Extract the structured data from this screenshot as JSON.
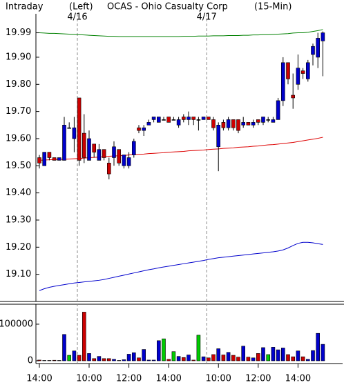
{
  "chart_data": {
    "type": "candlestick",
    "title": "OCAS - Ohio Casualty Corp",
    "header": [
      "Intraday",
      "(Left)",
      "(15-Min)"
    ],
    "date_labels": [
      "4/16",
      "4/17"
    ],
    "categories": [
      "14:00",
      null,
      null,
      null,
      null,
      null,
      null,
      null,
      null,
      null,
      "10:00",
      null,
      null,
      null,
      null,
      null,
      null,
      null,
      "12:00",
      null,
      null,
      null,
      null,
      null,
      null,
      null,
      "14:00",
      null,
      null,
      null,
      null,
      null,
      null,
      null,
      null,
      null,
      "10:00",
      null,
      null,
      null,
      null,
      null,
      null,
      null,
      "12:00",
      null,
      null,
      null,
      null,
      null,
      null,
      null,
      "14:00",
      null,
      null,
      null,
      null,
      null
    ],
    "open": [
      19.53,
      19.5,
      19.55,
      19.53,
      19.52,
      19.52,
      19.64,
      19.6,
      19.75,
      19.62,
      19.52,
      19.58,
      19.52,
      19.56,
      19.51,
      19.53,
      19.56,
      19.5,
      19.5,
      19.54,
      19.64,
      19.63,
      19.65,
      19.67,
      19.66,
      19.67,
      19.68,
      19.67,
      19.65,
      19.68,
      19.67,
      19.68,
      19.67,
      19.67,
      19.68,
      19.67,
      19.57,
      19.66,
      19.64,
      19.67,
      19.67,
      19.65,
      19.66,
      19.65,
      19.67,
      19.66,
      19.67,
      19.66,
      19.67,
      19.74,
      19.88,
      19.76,
      19.8,
      19.85,
      19.82,
      19.91,
      19.9,
      19.96
    ],
    "high": [
      19.54,
      19.55,
      19.55,
      19.53,
      19.53,
      19.68,
      19.66,
      19.68,
      19.75,
      19.69,
      19.63,
      19.58,
      19.58,
      19.56,
      19.53,
      19.59,
      19.56,
      19.54,
      19.55,
      19.6,
      19.65,
      19.65,
      19.67,
      19.68,
      19.68,
      19.68,
      19.68,
      19.68,
      19.68,
      19.69,
      19.7,
      19.68,
      19.68,
      19.68,
      19.68,
      19.68,
      19.66,
      19.67,
      19.68,
      19.67,
      19.67,
      19.68,
      19.66,
      19.67,
      19.67,
      19.68,
      19.68,
      19.68,
      19.75,
      19.9,
      19.88,
      19.84,
      19.91,
      19.86,
      19.89,
      19.95,
      19.99,
      19.995
    ],
    "low": [
      19.49,
      19.5,
      19.52,
      19.52,
      19.52,
      19.52,
      19.64,
      19.55,
      19.5,
      19.51,
      19.52,
      19.53,
      19.52,
      19.52,
      19.45,
      19.5,
      19.5,
      19.49,
      19.49,
      19.53,
      19.62,
      19.61,
      19.65,
      19.66,
      19.66,
      19.67,
      19.66,
      19.67,
      19.64,
      19.66,
      19.65,
      19.65,
      19.63,
      19.67,
      19.67,
      19.63,
      19.48,
      19.63,
      19.63,
      19.63,
      19.62,
      19.64,
      19.65,
      19.64,
      19.65,
      19.65,
      19.66,
      19.66,
      19.67,
      19.72,
      19.8,
      19.71,
      19.78,
      19.82,
      19.81,
      19.87,
      19.86,
      19.83
    ],
    "close": [
      19.51,
      19.55,
      19.53,
      19.52,
      19.53,
      19.65,
      19.64,
      19.64,
      19.52,
      19.53,
      19.6,
      19.55,
      19.56,
      19.53,
      19.47,
      19.57,
      19.51,
      19.54,
      19.53,
      19.59,
      19.63,
      19.64,
      19.66,
      19.68,
      19.68,
      19.67,
      19.66,
      19.67,
      19.67,
      19.67,
      19.68,
      19.67,
      19.67,
      19.68,
      19.67,
      19.64,
      19.65,
      19.64,
      19.67,
      19.64,
      19.63,
      19.66,
      19.65,
      19.66,
      19.66,
      19.68,
      19.67,
      19.67,
      19.74,
      19.88,
      19.82,
      19.75,
      19.86,
      19.84,
      19.88,
      19.94,
      19.97,
      19.99
    ],
    "series": [
      {
        "name": "upper",
        "color": "#008000",
        "values": [
          19.99,
          19.989,
          19.988,
          19.988,
          19.987,
          19.986,
          19.985,
          19.984,
          19.983,
          19.982,
          19.981,
          19.98,
          19.979,
          19.978,
          19.977,
          19.977,
          19.976,
          19.976,
          19.976,
          19.976,
          19.976,
          19.976,
          19.976,
          19.976,
          19.976,
          19.976,
          19.976,
          19.976,
          19.976,
          19.977,
          19.977,
          19.977,
          19.978,
          19.978,
          19.978,
          19.979,
          19.979,
          19.979,
          19.98,
          19.98,
          19.98,
          19.981,
          19.981,
          19.982,
          19.982,
          19.983,
          19.983,
          19.984,
          19.985,
          19.986,
          19.987,
          19.989,
          19.99,
          19.99,
          19.992,
          19.995,
          19.998,
          20.002
        ]
      },
      {
        "name": "middle",
        "color": "#dd0000",
        "values": [
          19.52,
          19.521,
          19.522,
          19.523,
          19.523,
          19.524,
          19.525,
          19.526,
          19.527,
          19.528,
          19.53,
          19.531,
          19.532,
          19.533,
          19.535,
          19.536,
          19.537,
          19.538,
          19.54,
          19.541,
          19.542,
          19.543,
          19.545,
          19.546,
          19.547,
          19.548,
          19.55,
          19.551,
          19.552,
          19.553,
          19.555,
          19.556,
          19.557,
          19.558,
          19.56,
          19.561,
          19.562,
          19.564,
          19.565,
          19.566,
          19.568,
          19.569,
          19.57,
          19.572,
          19.573,
          19.575,
          19.577,
          19.578,
          19.58,
          19.582,
          19.584,
          19.586,
          19.589,
          19.592,
          19.595,
          19.598,
          19.601,
          19.605
        ]
      },
      {
        "name": "lower",
        "color": "#0000cc",
        "values": [
          19.04,
          19.047,
          19.052,
          19.056,
          19.059,
          19.062,
          19.065,
          19.068,
          19.07,
          19.072,
          19.074,
          19.076,
          19.078,
          19.081,
          19.085,
          19.089,
          19.093,
          19.097,
          19.101,
          19.105,
          19.109,
          19.113,
          19.117,
          19.12,
          19.124,
          19.127,
          19.13,
          19.133,
          19.136,
          19.139,
          19.142,
          19.145,
          19.148,
          19.151,
          19.155,
          19.158,
          19.161,
          19.163,
          19.165,
          19.167,
          19.169,
          19.171,
          19.173,
          19.175,
          19.177,
          19.179,
          19.181,
          19.183,
          19.186,
          19.19,
          19.197,
          19.206,
          19.214,
          19.218,
          19.218,
          19.216,
          19.213,
          19.21
        ]
      }
    ],
    "volume": [
      2000,
      1000,
      1000,
      1500,
      1000,
      72000,
      15000,
      27000,
      15000,
      133000,
      20000,
      6000,
      12000,
      6000,
      6000,
      4000,
      1000,
      3000,
      18000,
      22000,
      8000,
      31000,
      2000,
      2000,
      55000,
      60000,
      4000,
      25000,
      12000,
      9000,
      16000,
      2000,
      70000,
      11000,
      8000,
      17000,
      33000,
      16000,
      23000,
      15000,
      10000,
      40000,
      10000,
      8000,
      20000,
      36000,
      17000,
      37000,
      30000,
      35000,
      17000,
      11000,
      27000,
      11000,
      4000,
      28000,
      75000,
      45000
    ],
    "colors": {
      "up": "#0000cc",
      "down": "#cc0000",
      "unchanged": "#00cc00"
    },
    "ylim": [
      19.0,
      20.06
    ],
    "yticks": [
      19.99,
      {
        "value": 19.9,
        "label": "19.90"
      },
      {
        "value": 19.8,
        "label": "19.80"
      },
      {
        "value": 19.7,
        "label": "19.70"
      },
      {
        "value": 19.6,
        "label": "19.60"
      },
      {
        "value": 19.5,
        "label": "19.50"
      },
      {
        "value": 19.4,
        "label": "19.40"
      },
      {
        "value": 19.3,
        "label": "19.30"
      },
      {
        "value": 19.2,
        "label": "19.20"
      },
      {
        "value": 19.1,
        "label": "19.10"
      }
    ],
    "volume_ylim": [
      0,
      147000
    ],
    "volume_yticks": [
      0,
      100000
    ]
  }
}
